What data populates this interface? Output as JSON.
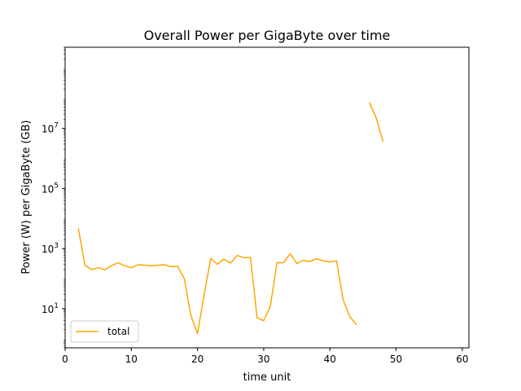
{
  "chart_data": {
    "type": "line",
    "title": "Overall Power per GigaByte over time",
    "xlabel": "time unit",
    "ylabel": "Power (W) per GigaByte (GB)",
    "xlim": [
      0,
      61
    ],
    "ylim": [
      0.5,
      5000000000
    ],
    "yscale": "log",
    "grid": false,
    "legend_position": "lower-left",
    "x_ticks": [
      0,
      10,
      20,
      30,
      40,
      50,
      60
    ],
    "y_ticks": [
      {
        "value": 10,
        "base": "10",
        "exp": "1"
      },
      {
        "value": 1000,
        "base": "10",
        "exp": "3"
      },
      {
        "value": 100000,
        "base": "10",
        "exp": "5"
      },
      {
        "value": 10000000,
        "base": "10",
        "exp": "7"
      }
    ],
    "series": [
      {
        "name": "total",
        "color": "#ffa500",
        "segments": [
          {
            "x": [
              2,
              3,
              4,
              5,
              6,
              7,
              8,
              9,
              10,
              11,
              12,
              13,
              14,
              15,
              16,
              17,
              18,
              19,
              20,
              21,
              22,
              23,
              24,
              25,
              26,
              27,
              28,
              29,
              30,
              31,
              32,
              33,
              34,
              35,
              36,
              37,
              38,
              39,
              40,
              41,
              42,
              43,
              44
            ],
            "y": [
              4500,
              280,
              200,
              230,
              200,
              270,
              340,
              270,
              230,
              290,
              280,
              270,
              280,
              290,
              250,
              260,
              100,
              6,
              1.5,
              30,
              480,
              300,
              450,
              330,
              590,
              500,
              500,
              5,
              4,
              12,
              340,
              340,
              680,
              320,
              410,
              370,
              460,
              390,
              360,
              390,
              20,
              5.5,
              3
            ]
          },
          {
            "x": [
              46,
              47,
              48
            ],
            "y": [
              70000000,
              22000000,
              3800000
            ]
          }
        ]
      }
    ]
  }
}
